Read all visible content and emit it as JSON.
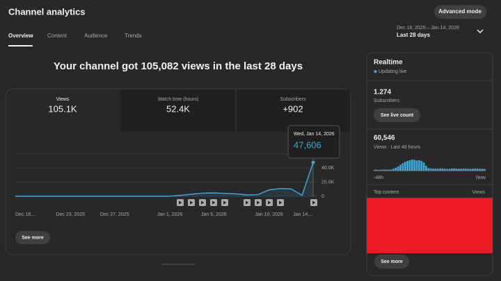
{
  "header": {
    "title": "Channel analytics",
    "advanced_mode": "Advanced mode",
    "tabs": [
      "Overview",
      "Content",
      "Audience",
      "Trends"
    ]
  },
  "date_range": {
    "dates": "Dec 18, 2025 – Jan 14, 2026",
    "period": "Last 28 days"
  },
  "headline": "Your channel got 105,082 views in the last 28 days",
  "metrics": [
    {
      "label": "Views",
      "value": "105.1K"
    },
    {
      "label": "Watch time (hours)",
      "value": "52.4K"
    },
    {
      "label": "Subscribers",
      "value": "+902"
    }
  ],
  "tooltip": {
    "date": "Wed, Jan 14, 2026",
    "value": "47,606"
  },
  "see_more": "See more",
  "realtime": {
    "title": "Realtime",
    "status": "Updating live",
    "subscribers": {
      "value": "1.274",
      "label": "Subscribers",
      "button": "See live count"
    },
    "views": {
      "value": "60,546",
      "label": "Views · Last 48 hours"
    },
    "top_content": {
      "title": "Top content",
      "column": "Views"
    },
    "see_more": "See more"
  },
  "chart_data": [
    {
      "type": "line",
      "color": "#3ea6d8",
      "categories": [
        "Dec 18,...",
        null,
        null,
        null,
        null,
        "Dec 23, 2025",
        null,
        null,
        null,
        "Dec 27, 2025",
        null,
        null,
        null,
        null,
        "Jan 1, 2026",
        null,
        null,
        null,
        "Jan 5, 2026",
        null,
        null,
        null,
        null,
        "Jan 10, 2026",
        null,
        null,
        null,
        "Jan 14,..."
      ],
      "values": [
        200,
        200,
        200,
        200,
        200,
        200,
        200,
        200,
        200,
        200,
        200,
        200,
        200,
        200,
        300,
        1500,
        3000,
        4500,
        4800,
        4200,
        3500,
        2000,
        2500,
        9000,
        11000,
        10500,
        1500,
        47606
      ],
      "ylim": [
        0,
        60000
      ],
      "yticks": [
        0,
        {
          "value": 20000,
          "label": "20.0K"
        },
        {
          "value": 40000,
          "label": "40.0K"
        }
      ],
      "grid": true
    },
    {
      "type": "bar",
      "color": "#3ea6d8",
      "categories": [
        "-48h",
        null,
        null,
        null,
        null,
        null,
        null,
        null,
        null,
        null,
        null,
        null,
        null,
        null,
        null,
        null,
        null,
        null,
        null,
        null,
        null,
        null,
        null,
        null,
        null,
        null,
        null,
        null,
        null,
        null,
        null,
        null,
        null,
        null,
        null,
        null,
        null,
        null,
        null,
        null,
        null,
        null,
        null,
        null,
        null,
        null,
        null,
        "Now"
      ],
      "values": [
        300,
        300,
        250,
        300,
        350,
        300,
        300,
        350,
        600,
        900,
        1300,
        1800,
        2300,
        2700,
        3000,
        3200,
        3400,
        3300,
        3100,
        3200,
        3000,
        2500,
        1500,
        800,
        700,
        600,
        650,
        600,
        700,
        650,
        600,
        550,
        600,
        650,
        700,
        600,
        550,
        600,
        650,
        600,
        550,
        500,
        600,
        650,
        600,
        550,
        600,
        500
      ]
    }
  ]
}
